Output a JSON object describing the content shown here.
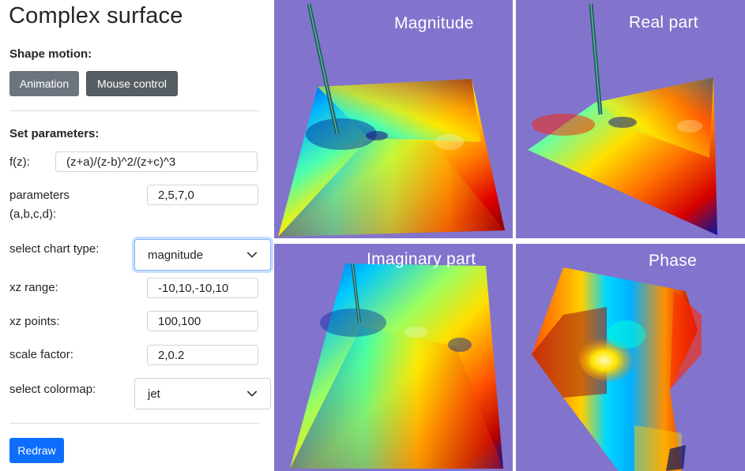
{
  "page": {
    "title": "Complex surface"
  },
  "motion": {
    "heading": "Shape motion:",
    "animation_label": "Animation",
    "mouse_label": "Mouse control"
  },
  "params": {
    "heading": "Set parameters:",
    "fz_label": "f(z):",
    "fz_value": "(z+a)/(z-b)^2/(z+c)^3",
    "parameters_label_1": "parameters",
    "parameters_label_2": "(a,b,c,d):",
    "parameters_value": "2,5,7,0",
    "chart_type_label": "select chart type:",
    "chart_type_value": "magnitude",
    "xz_range_label": "xz range:",
    "xz_range_value": "-10,10,-10,10",
    "xz_points_label": "xz points:",
    "xz_points_value": "100,100",
    "scale_label": "scale factor:",
    "scale_value": "2,0.2",
    "colormap_label": "select colormap:",
    "colormap_value": "jet",
    "redraw_label": "Redraw"
  },
  "plots": {
    "magnitude_title": "Magnitude",
    "real_title": "Real part",
    "imaginary_title": "Imaginary part",
    "phase_title": "Phase"
  },
  "colors": {
    "plot_background": "#8274cc",
    "primary": "#0d6efd",
    "secondary": "#6c757d"
  }
}
